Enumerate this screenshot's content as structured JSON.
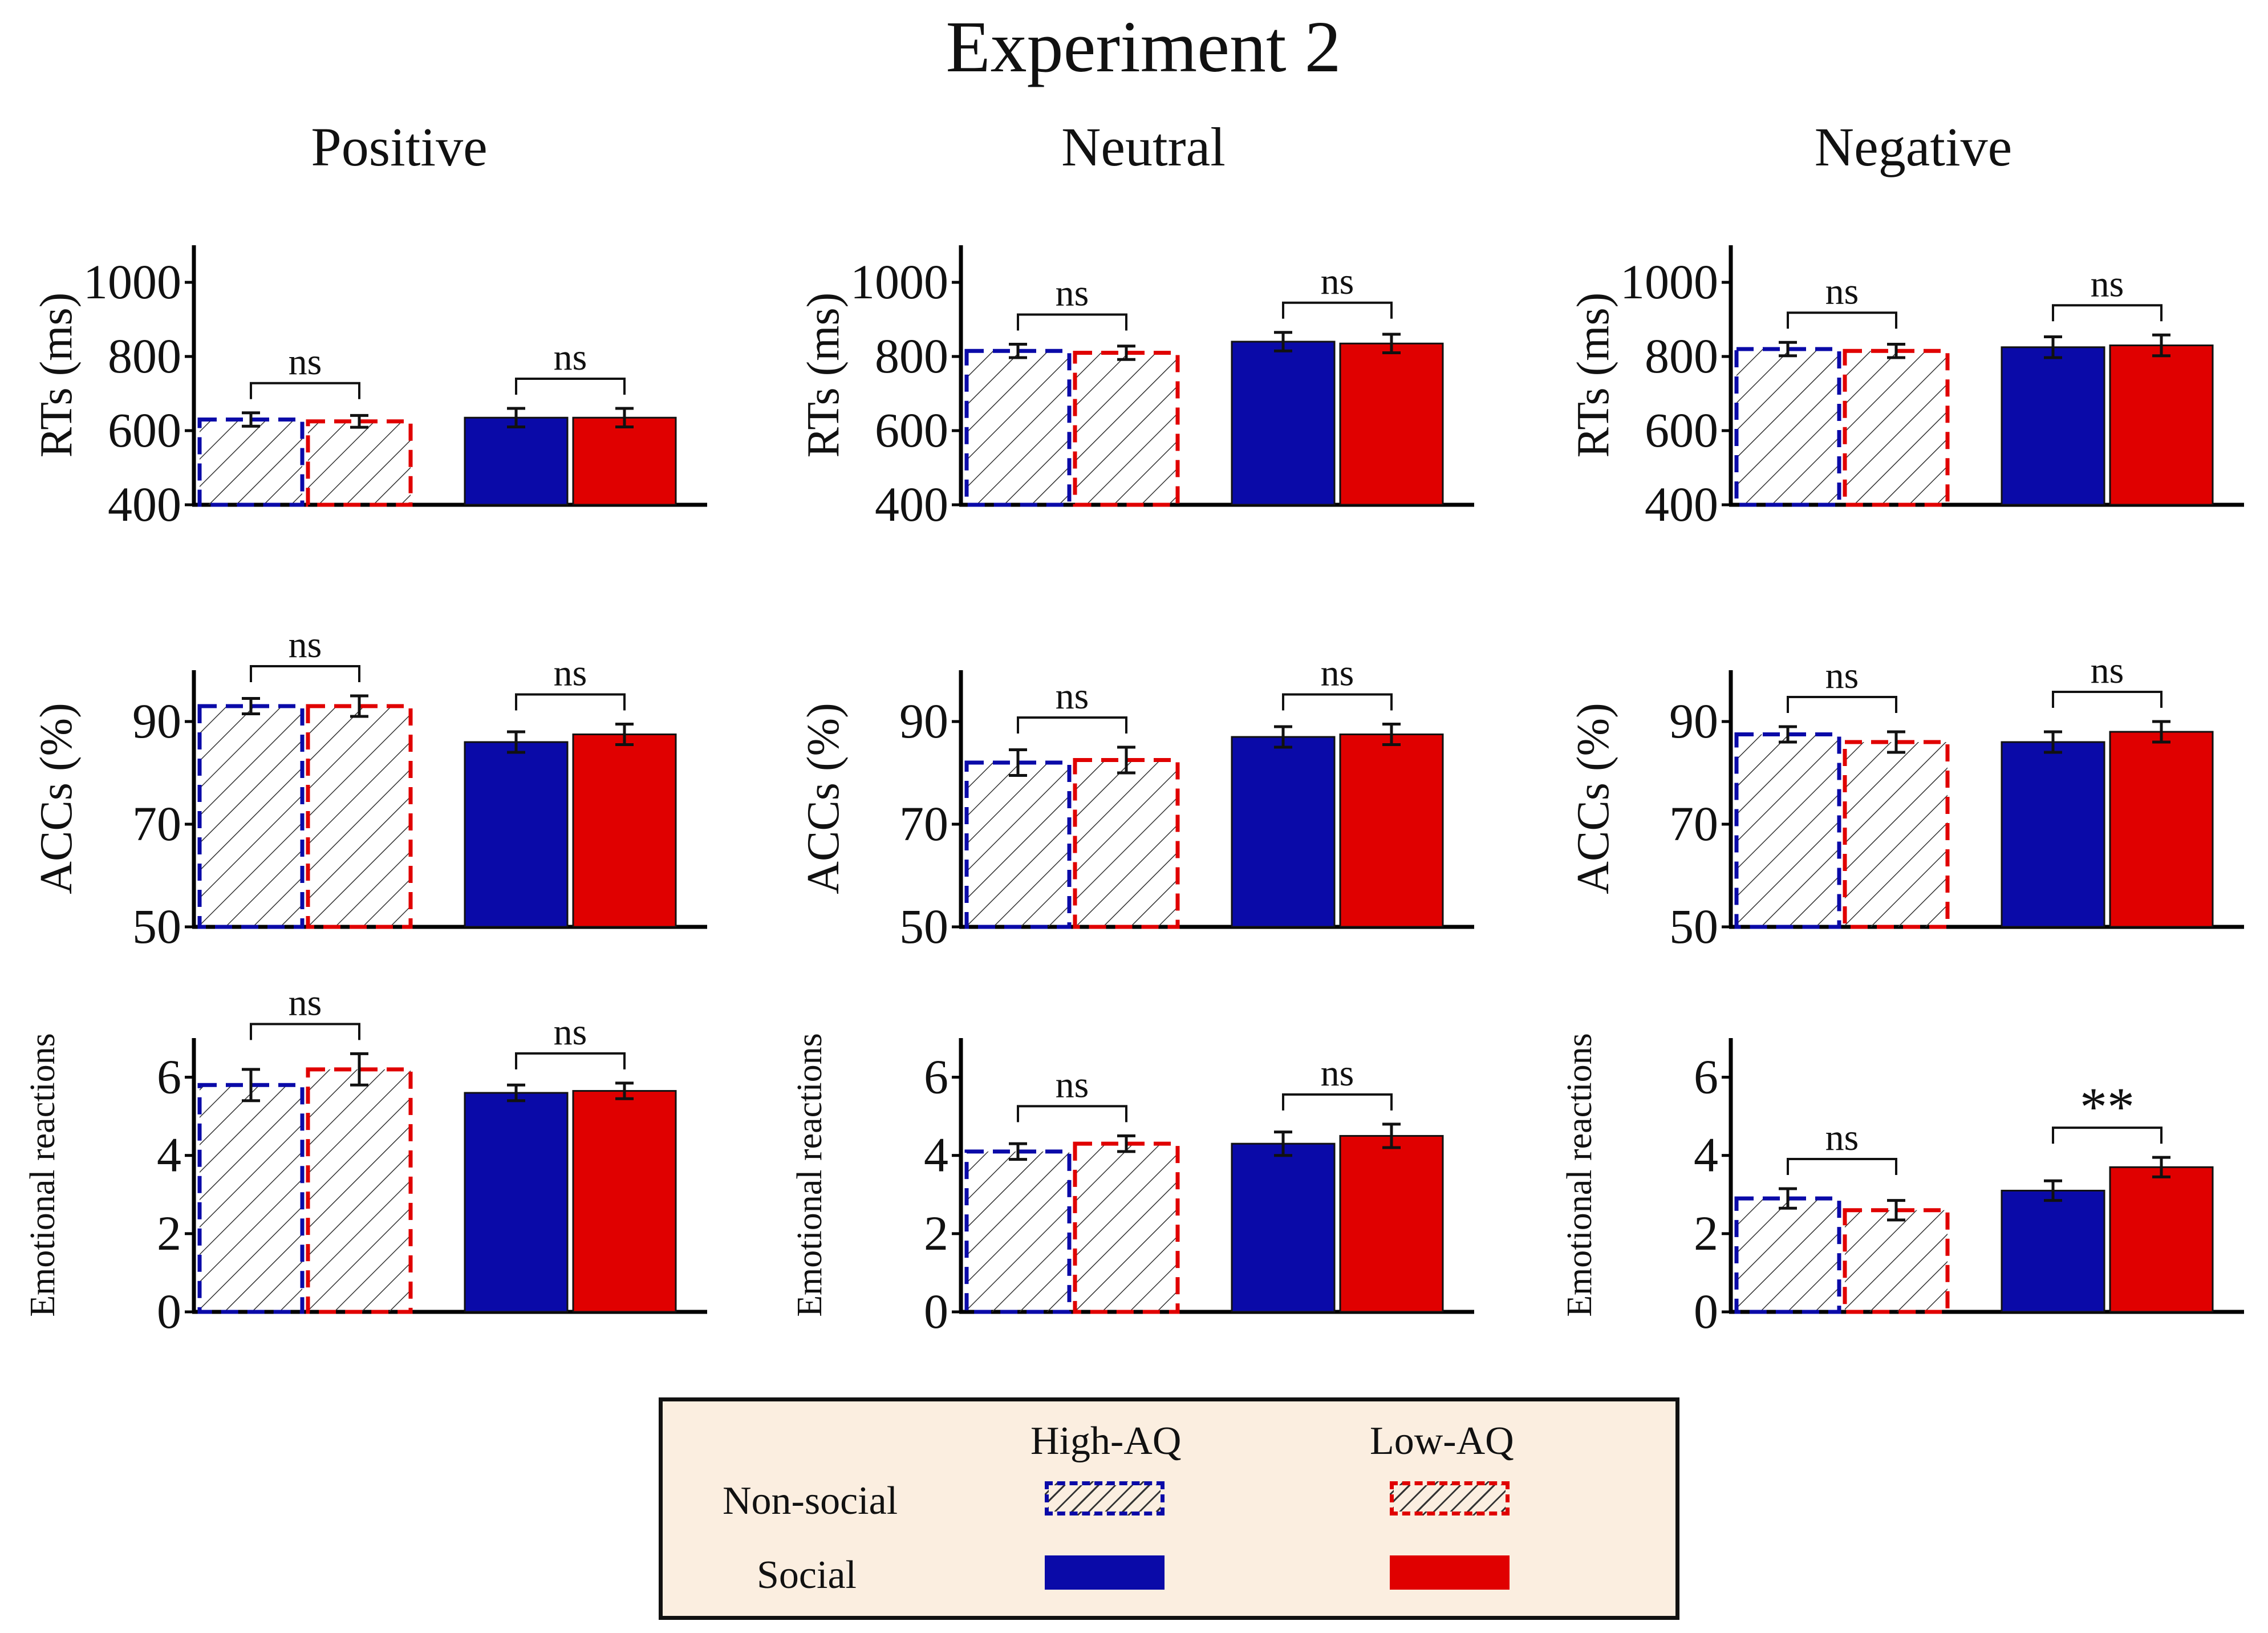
{
  "title": "Experiment 2",
  "column_titles": [
    "Positive",
    "Neutral",
    "Negative"
  ],
  "colors": {
    "high_aq": "#0a0aa8",
    "low_aq": "#e00000",
    "axis": "#000000"
  },
  "legend": {
    "high_aq": "High-AQ",
    "low_aq": "Low-AQ",
    "non_social": "Non-social",
    "social": "Social"
  },
  "chart_data": [
    {
      "type": "bar",
      "emotion": "Positive",
      "ylabel": "RTs (ms)",
      "ylim": [
        400,
        1100
      ],
      "ticks": [
        400,
        600,
        800,
        1000
      ],
      "categories": [
        "Non-social",
        "Social"
      ],
      "series": [
        {
          "name": "High-AQ",
          "values": [
            630,
            635
          ],
          "errors": [
            18,
            25
          ]
        },
        {
          "name": "Low-AQ",
          "values": [
            625,
            635
          ],
          "errors": [
            16,
            25
          ]
        }
      ],
      "comparisons": [
        "ns",
        "ns"
      ]
    },
    {
      "type": "bar",
      "emotion": "Neutral",
      "ylabel": "RTs (ms)",
      "ylim": [
        400,
        1100
      ],
      "ticks": [
        400,
        600,
        800,
        1000
      ],
      "categories": [
        "Non-social",
        "Social"
      ],
      "series": [
        {
          "name": "High-AQ",
          "values": [
            815,
            840
          ],
          "errors": [
            18,
            25
          ]
        },
        {
          "name": "Low-AQ",
          "values": [
            810,
            835
          ],
          "errors": [
            18,
            25
          ]
        }
      ],
      "comparisons": [
        "ns",
        "ns"
      ]
    },
    {
      "type": "bar",
      "emotion": "Negative",
      "ylabel": "RTs (ms)",
      "ylim": [
        400,
        1100
      ],
      "ticks": [
        400,
        600,
        800,
        1000
      ],
      "categories": [
        "Non-social",
        "Social"
      ],
      "series": [
        {
          "name": "High-AQ",
          "values": [
            820,
            825
          ],
          "errors": [
            18,
            28
          ]
        },
        {
          "name": "Low-AQ",
          "values": [
            815,
            830
          ],
          "errors": [
            18,
            28
          ]
        }
      ],
      "comparisons": [
        "ns",
        "ns"
      ]
    },
    {
      "type": "bar",
      "emotion": "Positive",
      "ylabel": "ACCs (%)",
      "ylim": [
        50,
        100
      ],
      "ticks": [
        50,
        70,
        90
      ],
      "categories": [
        "Non-social",
        "Social"
      ],
      "series": [
        {
          "name": "High-AQ",
          "values": [
            93,
            86
          ],
          "errors": [
            1.5,
            2
          ]
        },
        {
          "name": "Low-AQ",
          "values": [
            93,
            87.5
          ],
          "errors": [
            2,
            2
          ]
        }
      ],
      "comparisons": [
        "ns",
        "ns"
      ]
    },
    {
      "type": "bar",
      "emotion": "Neutral",
      "ylabel": "ACCs (%)",
      "ylim": [
        50,
        100
      ],
      "ticks": [
        50,
        70,
        90
      ],
      "categories": [
        "Non-social",
        "Social"
      ],
      "series": [
        {
          "name": "High-AQ",
          "values": [
            82,
            87
          ],
          "errors": [
            2.5,
            2
          ]
        },
        {
          "name": "Low-AQ",
          "values": [
            82.5,
            87.5
          ],
          "errors": [
            2.5,
            2
          ]
        }
      ],
      "comparisons": [
        "ns",
        "ns"
      ]
    },
    {
      "type": "bar",
      "emotion": "Negative",
      "ylabel": "ACCs (%)",
      "ylim": [
        50,
        100
      ],
      "ticks": [
        50,
        70,
        90
      ],
      "categories": [
        "Non-social",
        "Social"
      ],
      "series": [
        {
          "name": "High-AQ",
          "values": [
            87.5,
            86
          ],
          "errors": [
            1.5,
            2
          ]
        },
        {
          "name": "Low-AQ",
          "values": [
            86,
            88
          ],
          "errors": [
            2,
            2
          ]
        }
      ],
      "comparisons": [
        "ns",
        "ns"
      ]
    },
    {
      "type": "bar",
      "emotion": "Positive",
      "ylabel": "Emotional reactions",
      "ylim": [
        0,
        7
      ],
      "ticks": [
        0,
        2,
        4,
        6
      ],
      "categories": [
        "Non-social",
        "Social"
      ],
      "series": [
        {
          "name": "High-AQ",
          "values": [
            5.8,
            5.6
          ],
          "errors": [
            0.4,
            0.2
          ]
        },
        {
          "name": "Low-AQ",
          "values": [
            6.2,
            5.65
          ],
          "errors": [
            0.4,
            0.2
          ]
        }
      ],
      "comparisons": [
        "ns",
        "ns"
      ]
    },
    {
      "type": "bar",
      "emotion": "Neutral",
      "ylabel": "Emotional reactions",
      "ylim": [
        0,
        7
      ],
      "ticks": [
        0,
        2,
        4,
        6
      ],
      "categories": [
        "Non-social",
        "Social"
      ],
      "series": [
        {
          "name": "High-AQ",
          "values": [
            4.1,
            4.3
          ],
          "errors": [
            0.2,
            0.3
          ]
        },
        {
          "name": "Low-AQ",
          "values": [
            4.3,
            4.5
          ],
          "errors": [
            0.2,
            0.3
          ]
        }
      ],
      "comparisons": [
        "ns",
        "ns"
      ]
    },
    {
      "type": "bar",
      "emotion": "Negative",
      "ylabel": "Emotional reactions",
      "ylim": [
        0,
        7
      ],
      "ticks": [
        0,
        2,
        4,
        6
      ],
      "categories": [
        "Non-social",
        "Social"
      ],
      "series": [
        {
          "name": "High-AQ",
          "values": [
            2.9,
            3.1
          ],
          "errors": [
            0.25,
            0.25
          ]
        },
        {
          "name": "Low-AQ",
          "values": [
            2.6,
            3.7
          ],
          "errors": [
            0.25,
            0.25
          ]
        }
      ],
      "comparisons": [
        "ns",
        "**"
      ]
    }
  ]
}
